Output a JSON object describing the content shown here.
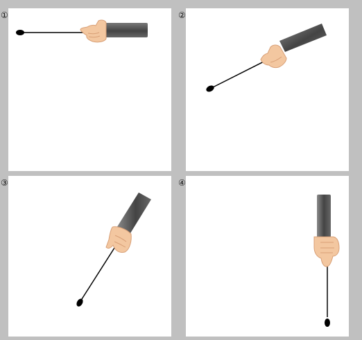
{
  "panels": [
    {
      "label": "①"
    },
    {
      "label": "②"
    },
    {
      "label": "③"
    },
    {
      "label": "④"
    }
  ],
  "colors": {
    "background": "#c0c0c0",
    "panel": "#ffffff",
    "sleeve": "#555555",
    "sleeve_highlight": "#8a8a8a",
    "skin": "#f3c7a0",
    "skin_shadow": "#d89f76",
    "string": "#000000",
    "bob": "#000000"
  },
  "icons": [
    "hand-holding-string-icon",
    "pendulum-bob-icon"
  ]
}
